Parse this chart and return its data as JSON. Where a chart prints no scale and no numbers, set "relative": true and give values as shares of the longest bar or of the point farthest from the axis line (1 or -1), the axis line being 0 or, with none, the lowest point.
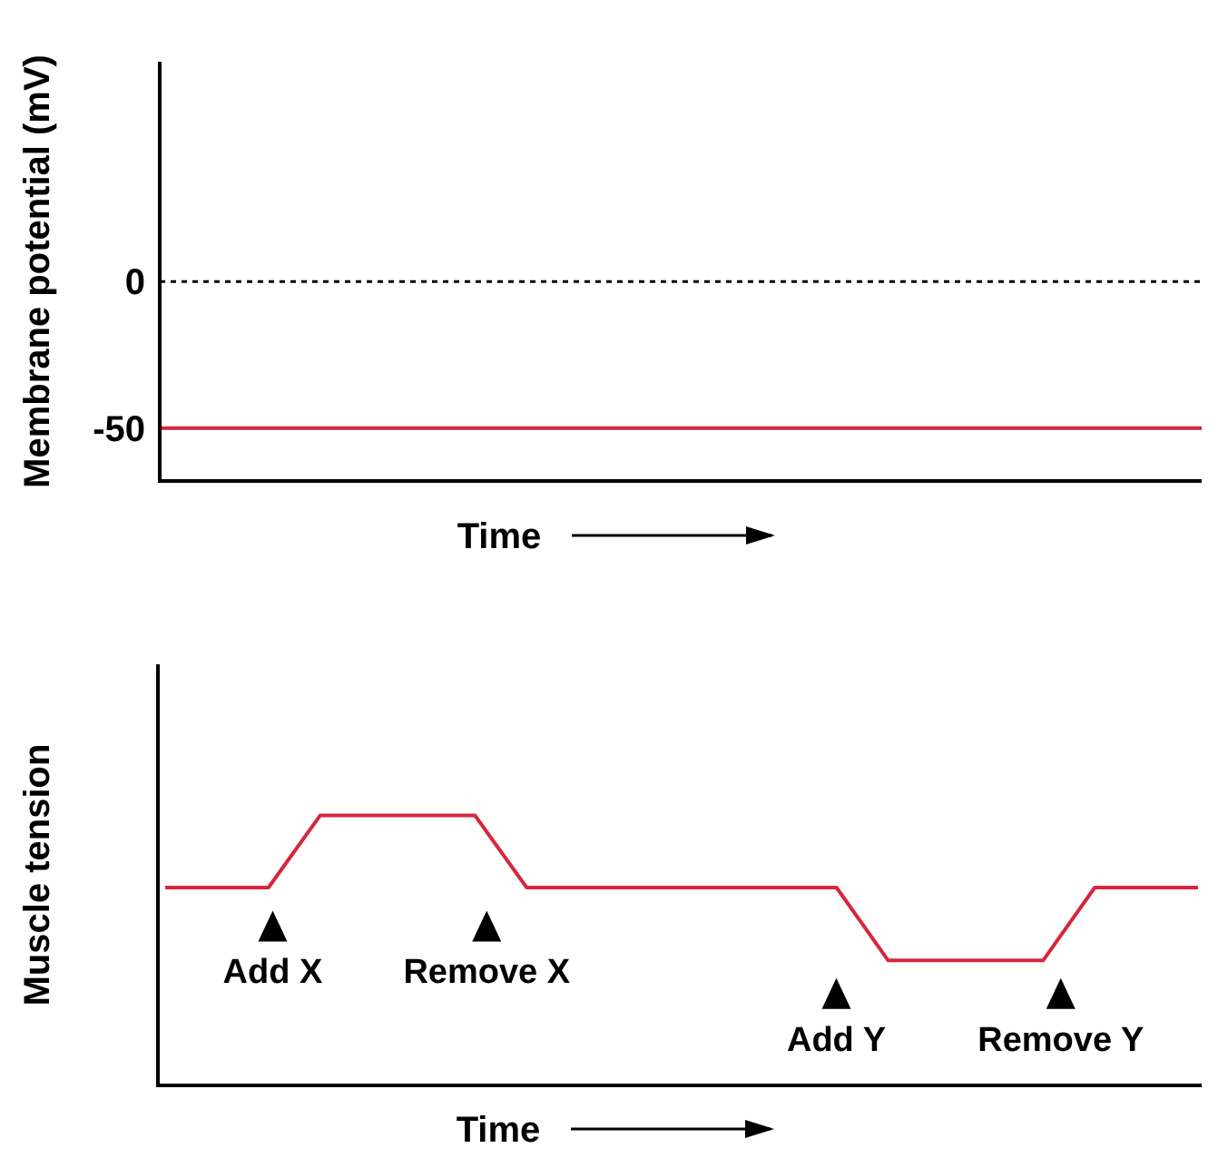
{
  "chart_data": [
    {
      "type": "line",
      "ylabel": "Membrane potential (mV)",
      "xlabel": "Time",
      "categories": [
        null,
        null
      ],
      "ylim": [
        -68,
        75
      ],
      "yticks": [
        -50,
        0
      ],
      "tick_labels": "y",
      "marker": "none",
      "line_style": "solid",
      "series": [
        {
          "color": "#d6263c",
          "values": [
            -50,
            -50
          ]
        }
      ],
      "ref_lines": [
        {
          "axis": "y",
          "value": 0,
          "color": "#000000",
          "line_style": "dotted"
        }
      ]
    },
    {
      "type": "line",
      "ylabel": "Muscle tension",
      "xlabel": "Time",
      "relative": true,
      "tick_labels": false,
      "marker": "none",
      "line_style": "solid",
      "categories": [
        null,
        null,
        null,
        null,
        null,
        null,
        null,
        null,
        null,
        null,
        null,
        null,
        null,
        null,
        null,
        null,
        null,
        null,
        null,
        null,
        null
      ],
      "series": [
        {
          "color": "#d6263c",
          "values": [
            0.733,
            0.733,
            0.733,
            1,
            1,
            1,
            1,
            0.733,
            0.733,
            0.733,
            0.733,
            0.733,
            0.733,
            0.733,
            0.463,
            0.463,
            0.463,
            0.463,
            0.733,
            0.733,
            0.733
          ]
        }
      ],
      "annotations": [
        "Add X",
        "Remove X",
        "Add Y",
        "Remove Y"
      ]
    }
  ]
}
